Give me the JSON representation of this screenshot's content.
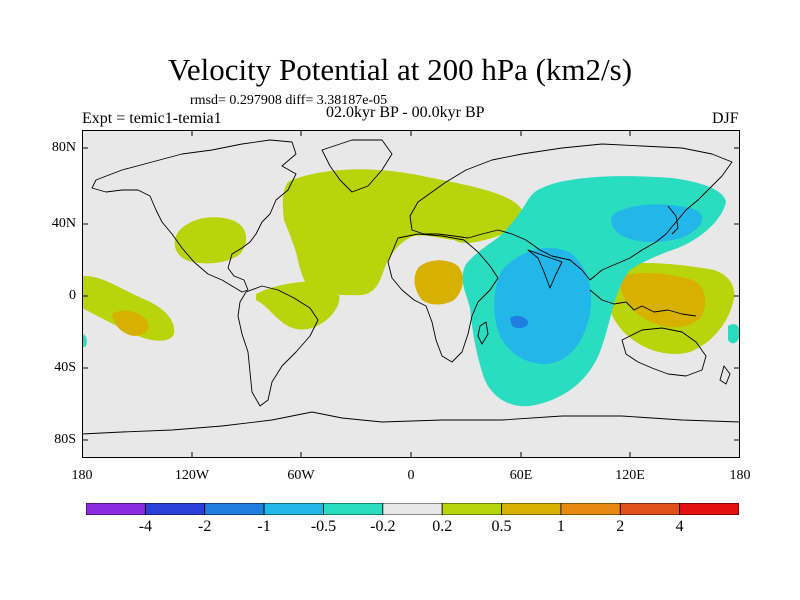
{
  "title": "Velocity Potential at 200 hPa (km2/s)",
  "stats": "rmsd= 0.297908 diff= 3.38187e-05",
  "experiment": "Expt = temic1-temia1",
  "period": "02.0kyr BP - 00.0kyr BP",
  "season": "DJF",
  "lat_labels": [
    "80N",
    "40N",
    "0",
    "40S",
    "80S"
  ],
  "lon_labels": [
    "180",
    "120W",
    "60W",
    "0",
    "60E",
    "120E",
    "180"
  ],
  "colorbar": {
    "colors": [
      "#8a2be2",
      "#2c3fd6",
      "#1e7fe0",
      "#22b7e8",
      "#2adcc0",
      "#e8e8e8",
      "#b8d40a",
      "#d8b000",
      "#e88a10",
      "#e05018",
      "#e21010"
    ],
    "labels": [
      "-4",
      "-2",
      "-1",
      "-0.5",
      "-0.2",
      "0.2",
      "0.5",
      "1",
      "2",
      "4"
    ]
  },
  "map_colors": {
    "background": "#e8e8e8",
    "coast": "#000000"
  }
}
